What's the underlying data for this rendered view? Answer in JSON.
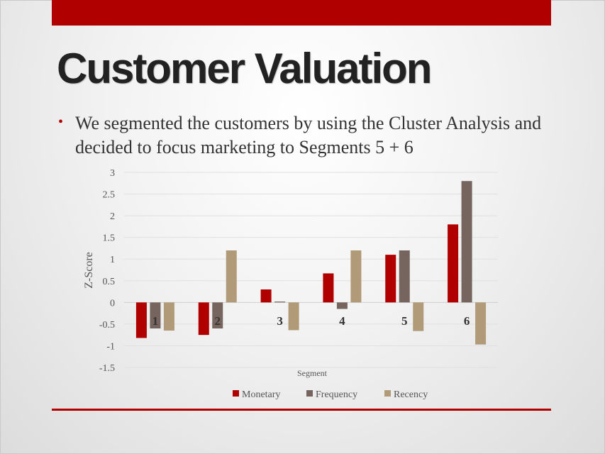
{
  "slide": {
    "title": "Customer Valuation",
    "bullet": "We segmented the customers by using the Cluster Analysis and decided to focus marketing to Segments 5 + 6",
    "accent_color": "#b00000"
  },
  "chart_data": {
    "type": "bar",
    "title": "",
    "xlabel": "Segment",
    "ylabel": "Z-Score",
    "ylim": [
      -1.5,
      3
    ],
    "yticks": [
      "3",
      "2.5",
      "2",
      "1.5",
      "1",
      "0.5",
      "0",
      "-0.5",
      "-1",
      "-1.5"
    ],
    "grid": true,
    "legend_position": "bottom",
    "categories": [
      "1",
      "2",
      "3",
      "4",
      "5",
      "6"
    ],
    "series": [
      {
        "name": "Monetary",
        "color": "#b00000",
        "values": [
          -0.82,
          -0.75,
          0.3,
          0.67,
          1.1,
          1.8
        ]
      },
      {
        "name": "Frequency",
        "color": "#76655f",
        "values": [
          -0.6,
          -0.6,
          0.02,
          -0.15,
          1.2,
          2.8
        ]
      },
      {
        "name": "Recency",
        "color": "#b09a78",
        "values": [
          -0.65,
          1.2,
          -0.64,
          1.2,
          -0.66,
          -0.97
        ]
      }
    ]
  }
}
